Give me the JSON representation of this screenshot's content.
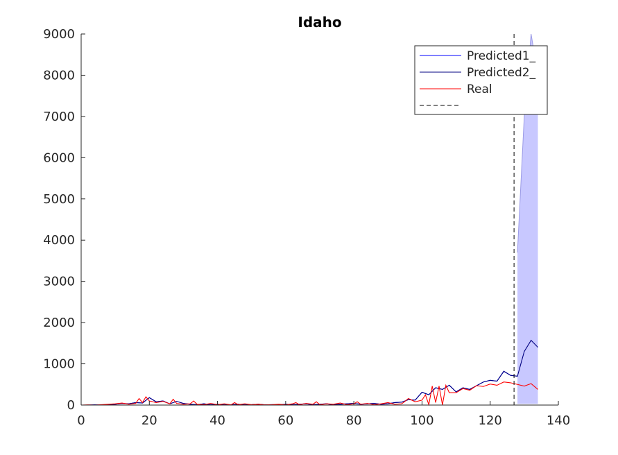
{
  "chart_data": {
    "type": "line",
    "title": "Idaho",
    "xlabel": "",
    "ylabel": "",
    "xlim": [
      0,
      140
    ],
    "ylim": [
      0,
      9000
    ],
    "xticks": [
      0,
      20,
      40,
      60,
      80,
      100,
      120,
      140
    ],
    "yticks": [
      0,
      1000,
      2000,
      3000,
      4000,
      5000,
      6000,
      7000,
      8000,
      9000
    ],
    "grid": false,
    "legend_position": "top-right",
    "vline_x": 127,
    "series": [
      {
        "name": "Predicted1_",
        "color": "#0000ff",
        "x": [
          0,
          2,
          4,
          6,
          8,
          10,
          12,
          14,
          16,
          18,
          20,
          22,
          24,
          26,
          28,
          30,
          32,
          34,
          36,
          38,
          40,
          42,
          44,
          46,
          48,
          50,
          52,
          54,
          56,
          58,
          60,
          62,
          64,
          66,
          68,
          70,
          72,
          74,
          76,
          78,
          80,
          82,
          84,
          86,
          88,
          90,
          92,
          94,
          96,
          98,
          100,
          102,
          104,
          106,
          108,
          110,
          112,
          114,
          116,
          118,
          120,
          122,
          124,
          126,
          128
        ],
        "y": [
          0,
          0,
          5,
          0,
          10,
          20,
          40,
          30,
          60,
          50,
          180,
          80,
          100,
          30,
          90,
          40,
          20,
          10,
          30,
          10,
          20,
          5,
          10,
          20,
          5,
          10,
          20,
          5,
          10,
          5,
          20,
          10,
          20,
          30,
          10,
          20,
          30,
          10,
          20,
          30,
          40,
          20,
          30,
          40,
          20,
          30,
          60,
          70,
          130,
          120,
          310,
          250,
          420,
          380,
          480,
          320,
          420,
          380,
          470,
          560,
          600,
          580,
          820,
          720,
          700
        ]
      },
      {
        "name": "Predicted2_",
        "color": "#000080",
        "x": [
          0,
          2,
          4,
          6,
          8,
          10,
          12,
          14,
          16,
          18,
          20,
          22,
          24,
          26,
          28,
          30,
          32,
          34,
          36,
          38,
          40,
          42,
          44,
          46,
          48,
          50,
          52,
          54,
          56,
          58,
          60,
          62,
          64,
          66,
          68,
          70,
          72,
          74,
          76,
          78,
          80,
          82,
          84,
          86,
          88,
          90,
          92,
          94,
          96,
          98,
          100,
          102,
          104,
          106,
          108,
          110,
          112,
          114,
          116,
          118,
          120,
          122,
          124,
          126,
          128,
          130,
          132,
          134
        ],
        "y": [
          0,
          0,
          5,
          0,
          10,
          20,
          40,
          30,
          60,
          50,
          180,
          80,
          100,
          30,
          90,
          40,
          20,
          10,
          30,
          10,
          20,
          5,
          10,
          20,
          5,
          10,
          20,
          5,
          10,
          5,
          20,
          10,
          20,
          30,
          10,
          20,
          30,
          10,
          20,
          30,
          40,
          20,
          30,
          40,
          20,
          30,
          60,
          70,
          130,
          120,
          310,
          250,
          420,
          380,
          480,
          320,
          420,
          380,
          470,
          560,
          600,
          580,
          820,
          720,
          700,
          1300,
          1570,
          1400
        ]
      },
      {
        "name": "Real",
        "color": "#ff0000",
        "x": [
          0,
          2,
          4,
          6,
          8,
          10,
          12,
          14,
          16,
          17,
          18,
          19,
          20,
          22,
          24,
          26,
          27,
          28,
          30,
          32,
          33,
          34,
          36,
          38,
          40,
          42,
          44,
          45,
          46,
          48,
          50,
          52,
          54,
          56,
          58,
          60,
          62,
          63,
          64,
          66,
          68,
          69,
          70,
          72,
          74,
          76,
          78,
          80,
          81,
          82,
          84,
          86,
          88,
          90,
          92,
          94,
          95,
          96,
          98,
          100,
          101,
          102,
          103,
          104,
          105,
          106,
          107,
          108,
          110,
          112,
          114,
          116,
          118,
          120,
          122,
          124,
          126,
          128,
          130,
          132,
          134
        ],
        "y": [
          0,
          5,
          0,
          10,
          20,
          30,
          50,
          20,
          40,
          160,
          60,
          200,
          100,
          60,
          90,
          30,
          140,
          40,
          20,
          30,
          100,
          20,
          10,
          40,
          10,
          30,
          5,
          60,
          10,
          30,
          10,
          20,
          5,
          10,
          20,
          5,
          30,
          60,
          10,
          40,
          20,
          80,
          10,
          30,
          20,
          50,
          10,
          30,
          80,
          20,
          40,
          10,
          30,
          60,
          20,
          30,
          90,
          160,
          80,
          120,
          250,
          10,
          460,
          60,
          460,
          5,
          480,
          300,
          300,
          400,
          360,
          470,
          450,
          510,
          480,
          560,
          540,
          500,
          460,
          520,
          380
        ]
      }
    ],
    "band": {
      "x": [
        128,
        130,
        132,
        134
      ],
      "upper": [
        3700,
        7000,
        9000,
        8000
      ],
      "lower": [
        30,
        30,
        30,
        30
      ],
      "color": "#c8c8ff"
    },
    "legend": {
      "entries": [
        "Predicted1_",
        "Predicted2_",
        "Real",
        ""
      ]
    }
  }
}
